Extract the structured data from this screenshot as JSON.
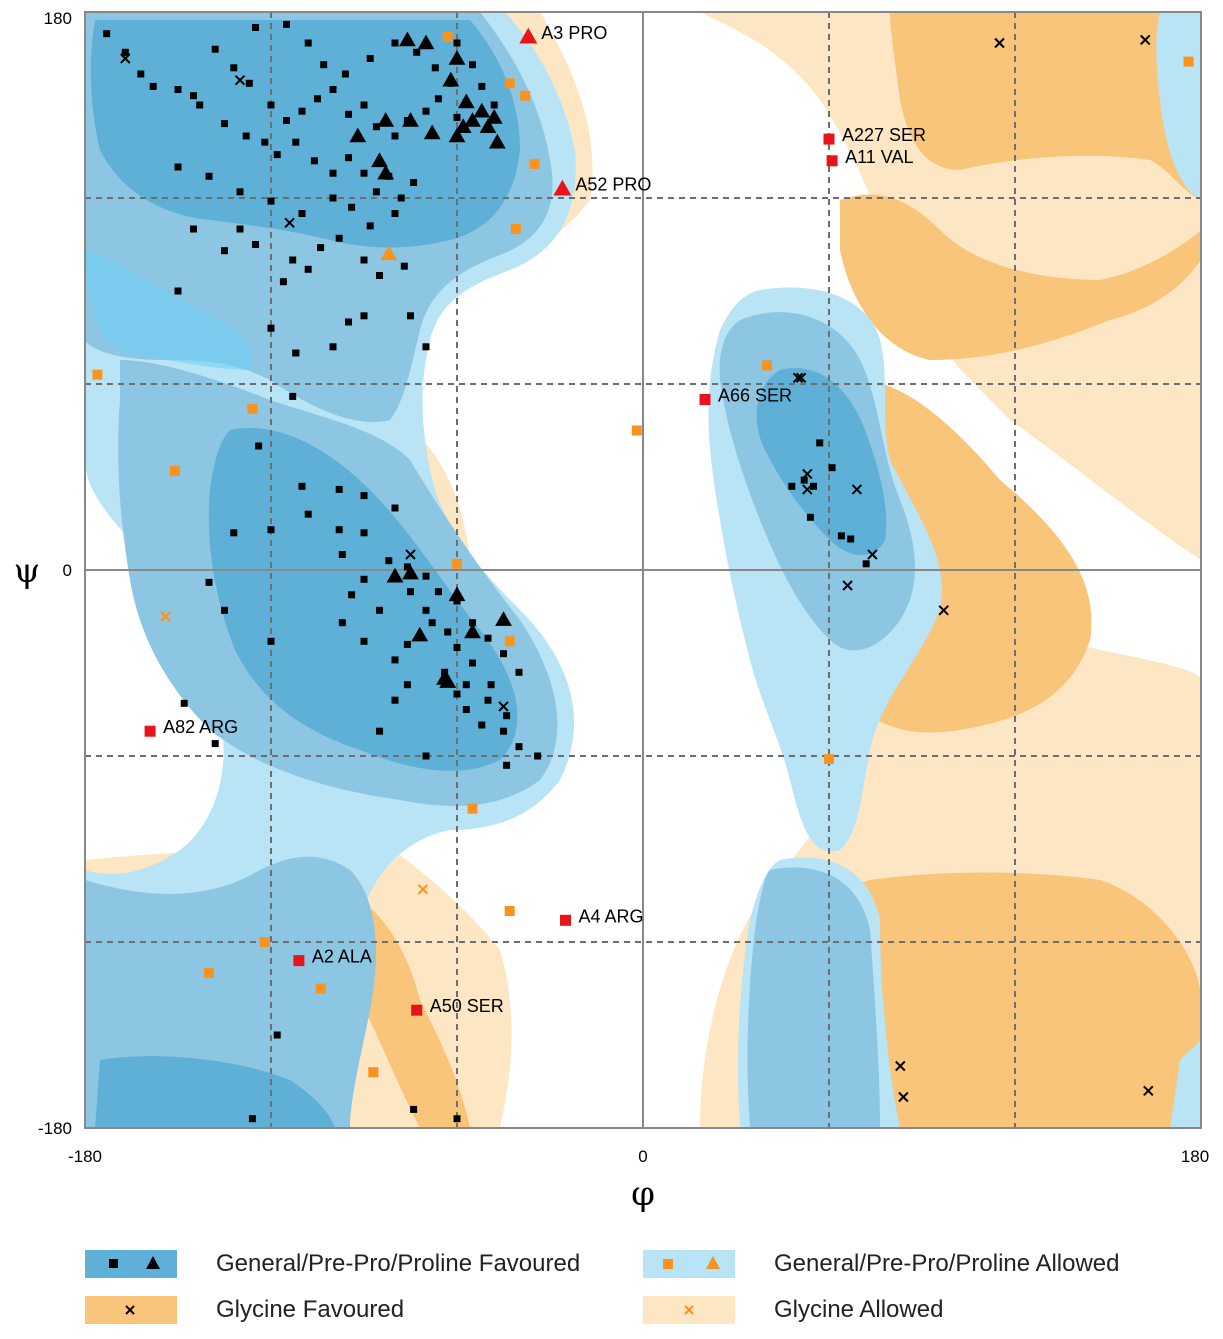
{
  "chart_data": {
    "type": "scatter",
    "title": "",
    "xlabel": "φ",
    "ylabel": "ψ",
    "xlim": [
      -180,
      180
    ],
    "ylim": [
      -180,
      180
    ],
    "x_ticks": [
      "-180",
      "0",
      "180"
    ],
    "y_ticks": [
      "180",
      "0",
      "-180"
    ],
    "grid": "dashed, every 60 degrees",
    "colors": {
      "general_favoured": "#5fb0d6",
      "general_allowed": "#b8e4f5",
      "glycine_favoured": "#f9c57a",
      "glycine_allowed": "#fde6c4",
      "outlier": "#e8141b",
      "allowed_marker": "#f7931e",
      "favoured_marker": "#000000"
    },
    "legend": [
      {
        "label": "General/Pre-Pro/Proline Favoured",
        "markers": [
          "square",
          "triangle"
        ],
        "color": "#000000"
      },
      {
        "label": "General/Pre-Pro/Proline Allowed",
        "markers": [
          "square",
          "triangle"
        ],
        "color": "#f7931e"
      },
      {
        "label": "Glycine Favoured",
        "markers": [
          "x"
        ],
        "color": "#000000"
      },
      {
        "label": "Glycine Allowed",
        "markers": [
          "x"
        ],
        "color": "#f7931e"
      }
    ],
    "series": [
      {
        "name": "General/Pre-Pro/Proline Favoured",
        "marker": "square",
        "points": [
          [
            -173,
            173
          ],
          [
            -167,
            167
          ],
          [
            -162,
            160
          ],
          [
            -158,
            156
          ],
          [
            -150,
            155
          ],
          [
            -145,
            153
          ],
          [
            -138,
            168
          ],
          [
            -132,
            162
          ],
          [
            -127,
            157
          ],
          [
            -120,
            150
          ],
          [
            -115,
            145
          ],
          [
            -110,
            148
          ],
          [
            -105,
            152
          ],
          [
            -100,
            155
          ],
          [
            -95,
            147
          ],
          [
            -90,
            150
          ],
          [
            -86,
            143
          ],
          [
            -80,
            140
          ],
          [
            -76,
            145
          ],
          [
            -70,
            148
          ],
          [
            -66,
            152
          ],
          [
            -60,
            146
          ],
          [
            -143,
            150
          ],
          [
            -135,
            144
          ],
          [
            -128,
            140
          ],
          [
            -122,
            138
          ],
          [
            -118,
            134
          ],
          [
            -112,
            138
          ],
          [
            -106,
            132
          ],
          [
            -100,
            128
          ],
          [
            -95,
            133
          ],
          [
            -90,
            128
          ],
          [
            -86,
            122
          ],
          [
            -82,
            127
          ],
          [
            -78,
            120
          ],
          [
            -74,
            125
          ],
          [
            -150,
            130
          ],
          [
            -140,
            127
          ],
          [
            -130,
            122
          ],
          [
            -120,
            119
          ],
          [
            -110,
            115
          ],
          [
            -100,
            120
          ],
          [
            -94,
            117
          ],
          [
            -88,
            111
          ],
          [
            -80,
            115
          ],
          [
            -113,
            100
          ],
          [
            -116,
            93
          ],
          [
            -108,
            97
          ],
          [
            -104,
            104
          ],
          [
            -98,
            107
          ],
          [
            -90,
            100
          ],
          [
            -85,
            95
          ],
          [
            -77,
            98
          ],
          [
            -130,
            110
          ],
          [
            -125,
            105
          ],
          [
            -135,
            103
          ],
          [
            -120,
            78
          ],
          [
            -112,
            70
          ],
          [
            -100,
            72
          ],
          [
            -90,
            82
          ],
          [
            -75,
            82
          ],
          [
            -70,
            72
          ],
          [
            -150,
            90
          ],
          [
            -145,
            110
          ],
          [
            -113,
            56
          ],
          [
            -95,
            80
          ],
          [
            -60,
            170
          ],
          [
            -55,
            163
          ],
          [
            -52,
            156
          ],
          [
            -48,
            150
          ],
          [
            -125,
            175
          ],
          [
            -115,
            176
          ],
          [
            -108,
            170
          ],
          [
            -103,
            163
          ],
          [
            -96,
            160
          ],
          [
            -88,
            165
          ],
          [
            -80,
            170
          ],
          [
            -73,
            167
          ],
          [
            -67,
            162
          ],
          [
            -62,
            157
          ],
          [
            -112,
            70
          ],
          [
            -124,
            40
          ],
          [
            -108,
            18
          ],
          [
            -110,
            27
          ],
          [
            -98,
            26
          ],
          [
            -90,
            24
          ],
          [
            -80,
            20
          ],
          [
            -120,
            13
          ],
          [
            -98,
            13
          ],
          [
            -90,
            12
          ],
          [
            -82,
            3
          ],
          [
            -76,
            1
          ],
          [
            -70,
            -2
          ],
          [
            -66,
            -7
          ],
          [
            -60,
            -10
          ],
          [
            -55,
            -17
          ],
          [
            -50,
            -22
          ],
          [
            -45,
            -27
          ],
          [
            -40,
            -33
          ],
          [
            -75,
            -7
          ],
          [
            -70,
            -13
          ],
          [
            -68,
            -17
          ],
          [
            -90,
            -23
          ],
          [
            -80,
            -29
          ],
          [
            -76,
            -37
          ],
          [
            -60,
            -40
          ],
          [
            -57,
            -45
          ],
          [
            -52,
            -50
          ],
          [
            -45,
            -52
          ],
          [
            -40,
            -57
          ],
          [
            -34,
            -60
          ],
          [
            -44,
            -63
          ],
          [
            -135,
            -13
          ],
          [
            -120,
            -23
          ],
          [
            -97,
            -17
          ],
          [
            -90,
            -3
          ],
          [
            -85,
            -13
          ],
          [
            -76,
            -24
          ],
          [
            -64,
            -33
          ],
          [
            -57,
            -37
          ],
          [
            -50,
            -42
          ],
          [
            -44,
            -47
          ],
          [
            -126,
            -177
          ],
          [
            -132,
            12
          ],
          [
            -97,
            5
          ],
          [
            -140,
            -4
          ],
          [
            -148,
            -43
          ],
          [
            -138,
            -56
          ],
          [
            -85,
            -52
          ],
          [
            -70,
            -60
          ],
          [
            -80,
            -42
          ],
          [
            -94,
            -8
          ],
          [
            -63,
            -20
          ],
          [
            -60,
            -25
          ],
          [
            -55,
            -30
          ],
          [
            -49,
            -37
          ],
          [
            57,
            41
          ],
          [
            55,
            27
          ],
          [
            61,
            33
          ],
          [
            64,
            11
          ],
          [
            72,
            2
          ],
          [
            -118,
            -150
          ],
          [
            -60,
            -177
          ],
          [
            -74,
            -174
          ],
          [
            48,
            27
          ],
          [
            52,
            29
          ],
          [
            54,
            17
          ],
          [
            67,
            10
          ]
        ]
      },
      {
        "name": "General/Pre-Pro/Proline Favoured",
        "marker": "triangle",
        "points": [
          [
            -76,
            171
          ],
          [
            -70,
            170
          ],
          [
            -60,
            165
          ],
          [
            -62,
            158
          ],
          [
            -57,
            151
          ],
          [
            -52,
            148
          ],
          [
            -48,
            146
          ],
          [
            -58,
            143
          ],
          [
            -68,
            141
          ],
          [
            -75,
            145
          ],
          [
            -83,
            145
          ],
          [
            -92,
            140
          ],
          [
            -85,
            132
          ],
          [
            -83,
            128
          ],
          [
            -60,
            140
          ],
          [
            -55,
            145
          ],
          [
            -50,
            143
          ],
          [
            -47,
            138
          ],
          [
            -80,
            -2
          ],
          [
            -60,
            -8
          ],
          [
            -45,
            -16
          ],
          [
            -55,
            -20
          ],
          [
            -64,
            -35
          ],
          [
            -63,
            -36
          ],
          [
            -75,
            -1
          ],
          [
            -72,
            -21
          ]
        ]
      },
      {
        "name": "General/Pre-Pro/Proline Allowed",
        "marker": "square",
        "points": [
          [
            -63,
            172
          ],
          [
            -43,
            157
          ],
          [
            -38,
            153
          ],
          [
            -35,
            131
          ],
          [
            -41,
            110
          ],
          [
            -176,
            63
          ],
          [
            -126,
            52
          ],
          [
            -151,
            32
          ],
          [
            -60,
            2
          ],
          [
            -43,
            -23
          ],
          [
            -55,
            -77
          ],
          [
            -43,
            -110
          ],
          [
            -104,
            -135
          ],
          [
            -87,
            -162
          ],
          [
            -2,
            45
          ],
          [
            40,
            66
          ],
          [
            60,
            -61
          ],
          [
            176,
            164
          ],
          [
            -140,
            -130
          ],
          [
            -122,
            -120
          ]
        ]
      },
      {
        "name": "General/Pre-Pro/Proline Allowed",
        "marker": "triangle",
        "points": [
          [
            -82,
            102
          ]
        ]
      },
      {
        "name": "Glycine Favoured",
        "marker": "x",
        "points": [
          [
            -167,
            165
          ],
          [
            -130,
            158
          ],
          [
            -114,
            112
          ],
          [
            -75,
            5
          ],
          [
            -45,
            -44
          ],
          [
            51,
            62
          ],
          [
            53,
            31
          ],
          [
            53,
            26
          ],
          [
            69,
            26
          ],
          [
            74,
            5
          ],
          [
            66,
            -5
          ],
          [
            97,
            -13
          ],
          [
            115,
            170
          ],
          [
            162,
            171
          ],
          [
            83,
            -160
          ],
          [
            84,
            -170
          ],
          [
            163,
            -168
          ],
          [
            50,
            62
          ]
        ]
      },
      {
        "name": "Glycine Allowed",
        "marker": "x",
        "points": [
          [
            -154,
            -15
          ],
          [
            -71,
            -103
          ]
        ]
      },
      {
        "name": "Outliers",
        "marker": "mixed",
        "points": [
          {
            "phi": -37,
            "psi": 172,
            "marker": "triangle",
            "label": "A3  PRO"
          },
          {
            "phi": 60,
            "psi": 139,
            "marker": "square",
            "label": "A227  SER"
          },
          {
            "phi": 61,
            "psi": 132,
            "marker": "square",
            "label": "A11  VAL"
          },
          {
            "phi": -26,
            "psi": 123,
            "marker": "triangle",
            "label": "A52  PRO"
          },
          {
            "phi": 20,
            "psi": 55,
            "marker": "square",
            "label": "A66  SER"
          },
          {
            "phi": -159,
            "psi": -52,
            "marker": "square",
            "label": "A82  ARG"
          },
          {
            "phi": -25,
            "psi": -113,
            "marker": "square",
            "label": "A4  ARG"
          },
          {
            "phi": -111,
            "psi": -126,
            "marker": "square",
            "label": "A2  ALA"
          },
          {
            "phi": -73,
            "psi": -142,
            "marker": "square",
            "label": "A50  SER"
          }
        ]
      }
    ]
  }
}
